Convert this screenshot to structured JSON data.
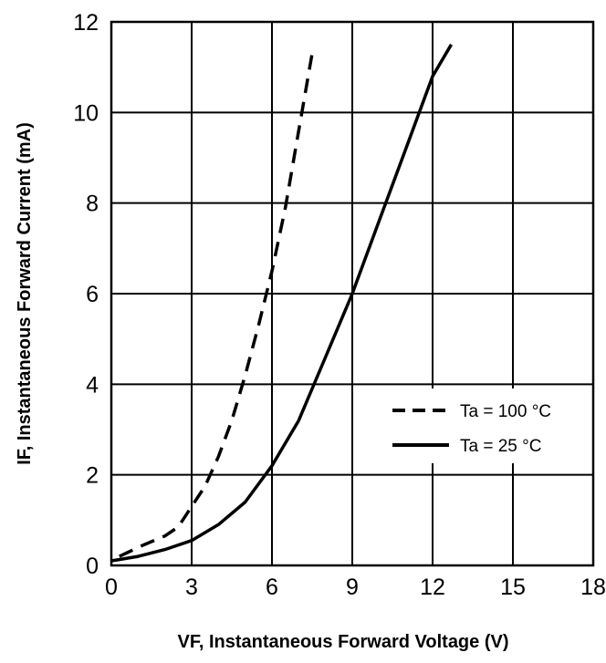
{
  "chart_data": {
    "type": "line",
    "xlabel": "VF, Instantaneous Forward Voltage (V)",
    "ylabel": "IF, Instantaneous Forward Current (mA)",
    "xlim": [
      0,
      18
    ],
    "ylim": [
      0,
      12
    ],
    "x_ticks": [
      "0",
      "3",
      "6",
      "9",
      "12",
      "15",
      "18"
    ],
    "y_ticks": [
      "0",
      "2",
      "4",
      "6",
      "8",
      "10",
      "12"
    ],
    "grid": true,
    "legend_position": "right",
    "series": [
      {
        "name": "Ta = 100 °C",
        "style": "dashed",
        "color": "#000000",
        "x": [
          0.3,
          1.2,
          2.0,
          2.5,
          3.0,
          3.5,
          4.0,
          4.5,
          5.0,
          5.5,
          6.0,
          6.5,
          7.0,
          7.5
        ],
        "y": [
          0.2,
          0.45,
          0.65,
          0.85,
          1.3,
          1.75,
          2.4,
          3.2,
          4.2,
          5.3,
          6.5,
          7.9,
          9.6,
          11.3
        ]
      },
      {
        "name": "Ta = 25 °C",
        "style": "solid",
        "color": "#000000",
        "x": [
          0.0,
          1.0,
          2.0,
          3.0,
          4.0,
          5.0,
          6.0,
          7.0,
          8.0,
          9.0,
          10.0,
          11.0,
          12.0,
          12.7
        ],
        "y": [
          0.1,
          0.2,
          0.35,
          0.55,
          0.9,
          1.4,
          2.2,
          3.2,
          4.6,
          6.0,
          7.6,
          9.2,
          10.8,
          11.5
        ]
      }
    ]
  }
}
